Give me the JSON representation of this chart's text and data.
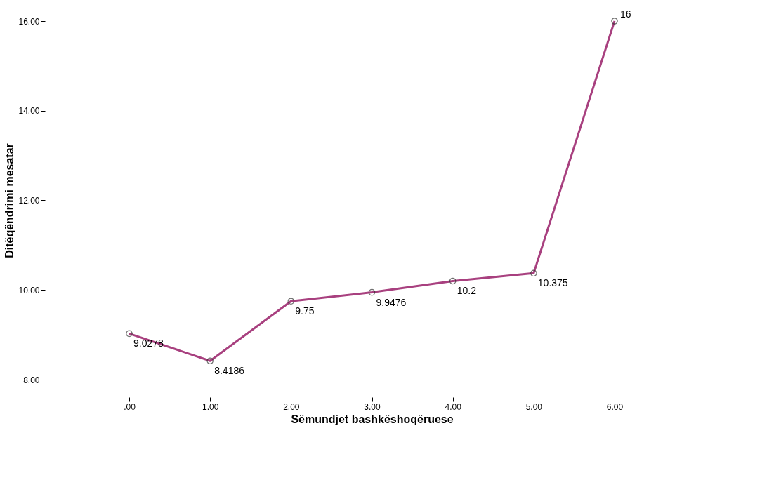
{
  "chart_data": {
    "type": "line",
    "xlabel": "Sëmundjet bashkëshoqëruese",
    "ylabel": "Ditëqëndrimi mesatar",
    "x": [
      0,
      1,
      2,
      3,
      4,
      5,
      6
    ],
    "xlim": [
      0,
      6
    ],
    "ylim": [
      8,
      16
    ],
    "series": [
      {
        "color": "#a8407f",
        "values": [
          9.0278,
          8.4186,
          9.75,
          9.9476,
          10.2,
          10.375,
          16
        ]
      }
    ],
    "xticks": [
      {
        "value": 0,
        "label": ".00"
      },
      {
        "value": 1,
        "label": "1.00"
      },
      {
        "value": 2,
        "label": "2.00"
      },
      {
        "value": 3,
        "label": "3.00"
      },
      {
        "value": 4,
        "label": "4.00"
      },
      {
        "value": 5,
        "label": "5.00"
      },
      {
        "value": 6,
        "label": "6.00"
      }
    ],
    "yticks": [
      {
        "value": 8,
        "label": "8.00"
      },
      {
        "value": 10,
        "label": "10.00"
      },
      {
        "value": 12,
        "label": "12.00"
      },
      {
        "value": 14,
        "label": "14.00"
      },
      {
        "value": 16,
        "label": "16.00"
      }
    ],
    "data_labels": true,
    "marker": "circle",
    "line_style": "solid",
    "grid": false
  }
}
